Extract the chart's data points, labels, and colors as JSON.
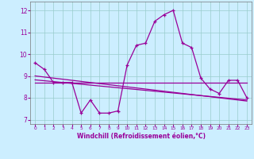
{
  "xlabel": "Windchill (Refroidissement éolien,°C)",
  "x": [
    0,
    1,
    2,
    3,
    4,
    5,
    6,
    7,
    8,
    9,
    10,
    11,
    12,
    13,
    14,
    15,
    16,
    17,
    18,
    19,
    20,
    21,
    22,
    23
  ],
  "y_main": [
    9.6,
    9.3,
    8.7,
    8.7,
    8.7,
    7.3,
    7.9,
    7.3,
    7.3,
    7.4,
    9.5,
    10.4,
    10.5,
    11.5,
    11.8,
    12.0,
    10.5,
    10.3,
    8.9,
    8.4,
    8.2,
    8.8,
    8.8,
    8.0
  ],
  "y_line1": [
    8.7,
    8.7,
    8.7,
    8.7,
    8.7,
    8.7,
    8.7,
    8.7,
    8.7,
    8.7,
    8.7,
    8.7,
    8.7,
    8.7,
    8.7,
    8.7,
    8.7,
    8.7,
    8.7,
    8.7,
    8.7,
    8.7,
    8.7,
    8.7
  ],
  "y_line2": [
    8.82,
    8.78,
    8.74,
    8.7,
    8.66,
    8.62,
    8.58,
    8.54,
    8.5,
    8.46,
    8.42,
    8.38,
    8.34,
    8.3,
    8.26,
    8.22,
    8.18,
    8.14,
    8.1,
    8.06,
    8.02,
    7.98,
    7.94,
    7.9
  ],
  "y_line3": [
    9.0,
    8.95,
    8.9,
    8.85,
    8.8,
    8.75,
    8.7,
    8.65,
    8.6,
    8.55,
    8.5,
    8.45,
    8.4,
    8.35,
    8.3,
    8.25,
    8.2,
    8.15,
    8.1,
    8.05,
    8.0,
    7.95,
    7.9,
    7.85
  ],
  "line_color": "#990099",
  "bg_color": "#cceeff",
  "grid_color": "#99cccc",
  "ylim": [
    6.8,
    12.4
  ],
  "yticks": [
    7,
    8,
    9,
    10,
    11,
    12
  ],
  "xlim": [
    -0.5,
    23.5
  ],
  "xtick_labels": [
    "0",
    "1",
    "2",
    "3",
    "4",
    "5",
    "6",
    "7",
    "8",
    "9",
    "10",
    "11",
    "12",
    "13",
    "14",
    "15",
    "16",
    "17",
    "18",
    "19",
    "20",
    "21",
    "22",
    "23"
  ]
}
